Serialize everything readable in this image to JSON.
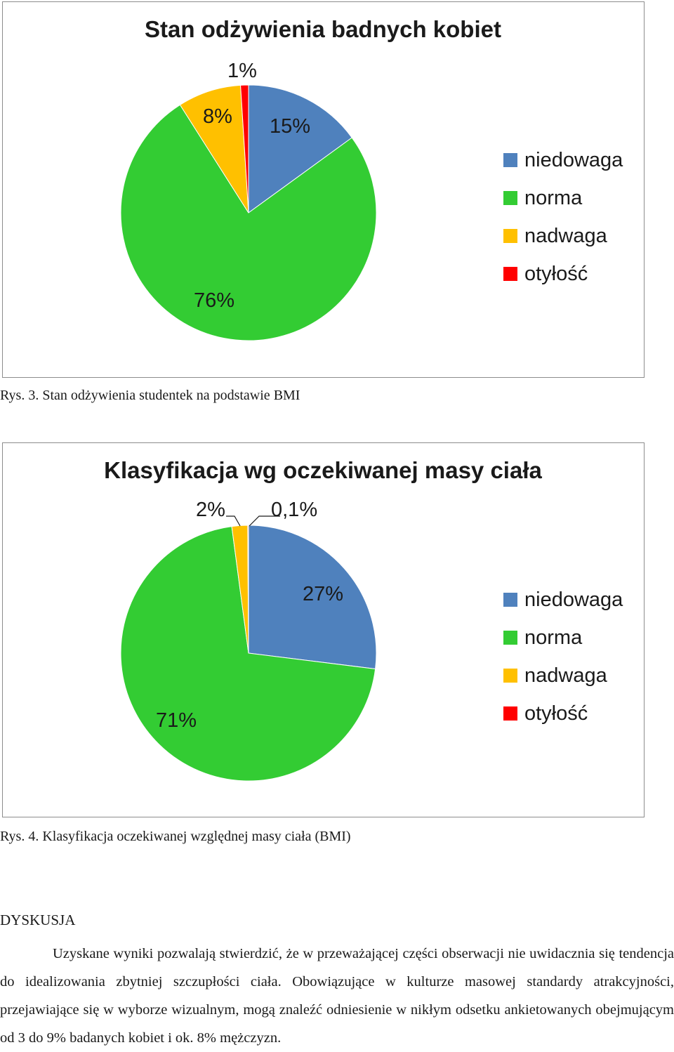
{
  "chart_data": [
    {
      "type": "pie",
      "title": "Stan odżywienia badnych kobiet",
      "categories": [
        "niedowaga",
        "norma",
        "nadwaga",
        "otyłość"
      ],
      "values": [
        15,
        76,
        8,
        1
      ],
      "data_labels": [
        "15%",
        "76%",
        "8%",
        "1%"
      ],
      "colors": [
        "#4F81BD",
        "#33CC33",
        "#FFC000",
        "#FF0000"
      ],
      "legend_position": "right"
    },
    {
      "type": "pie",
      "title": "Klasyfikacja wg oczekiwanej masy ciała",
      "categories": [
        "niedowaga",
        "norma",
        "nadwaga",
        "otyłość"
      ],
      "values": [
        27,
        71,
        2,
        0.1
      ],
      "data_labels": [
        "27%",
        "71%",
        "2%",
        "0,1%"
      ],
      "colors": [
        "#4F81BD",
        "#33CC33",
        "#FFC000",
        "#FF0000"
      ],
      "legend_position": "right"
    }
  ],
  "captions": {
    "fig3": "Rys. 3. Stan odżywienia studentek na podstawie BMI",
    "fig4": "Rys. 4. Klasyfikacja oczekiwanej względnej masy ciała (BMI)"
  },
  "discussion": {
    "heading": "DYSKUSJA",
    "text": "Uzyskane wyniki pozwalają stwierdzić, że w przeważającej części obserwacji nie uwidacznia się tendencja do idealizowania zbytniej szczupłości ciała. Obowiązujące w kulturze masowej standardy atrakcyjności, przejawiające się w wyborze wizualnym, mogą znaleźć odniesienie w nikłym odsetku ankietowanych obejmującym od 3 do 9% badanych kobiet i ok. 8% mężczyzn."
  }
}
